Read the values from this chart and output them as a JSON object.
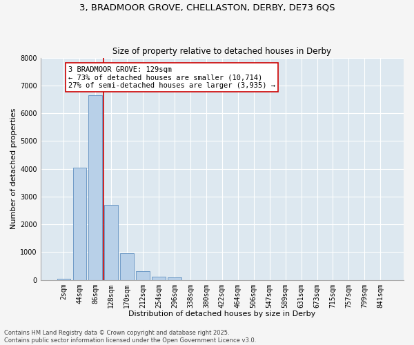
{
  "title_line1": "3, BRADMOOR GROVE, CHELLASTON, DERBY, DE73 6QS",
  "title_line2": "Size of property relative to detached houses in Derby",
  "xlabel": "Distribution of detached houses by size in Derby",
  "ylabel": "Number of detached properties",
  "bar_labels": [
    "2sqm",
    "44sqm",
    "86sqm",
    "128sqm",
    "170sqm",
    "212sqm",
    "254sqm",
    "296sqm",
    "338sqm",
    "380sqm",
    "422sqm",
    "464sqm",
    "506sqm",
    "547sqm",
    "589sqm",
    "631sqm",
    "673sqm",
    "715sqm",
    "757sqm",
    "799sqm",
    "841sqm"
  ],
  "bar_values": [
    50,
    4050,
    6650,
    2700,
    970,
    315,
    120,
    85,
    0,
    0,
    0,
    0,
    0,
    0,
    0,
    0,
    0,
    0,
    0,
    0,
    0
  ],
  "bar_color": "#b8d0e8",
  "bar_edge_color": "#6090c0",
  "background_color": "#dde8f0",
  "grid_color": "#ffffff",
  "ylim": [
    0,
    8000
  ],
  "yticks": [
    0,
    1000,
    2000,
    3000,
    4000,
    5000,
    6000,
    7000,
    8000
  ],
  "red_line_color": "#cc0000",
  "annotation_text": "3 BRADMOOR GROVE: 129sqm\n← 73% of detached houses are smaller (10,714)\n27% of semi-detached houses are larger (3,935) →",
  "annotation_box_color": "#cc0000",
  "footer_line1": "Contains HM Land Registry data © Crown copyright and database right 2025.",
  "footer_line2": "Contains public sector information licensed under the Open Government Licence v3.0.",
  "title_fontsize": 9.5,
  "subtitle_fontsize": 8.5,
  "axis_label_fontsize": 8,
  "tick_fontsize": 7,
  "footer_fontsize": 6,
  "annotation_fontsize": 7.5,
  "fig_bg_color": "#f5f5f5"
}
